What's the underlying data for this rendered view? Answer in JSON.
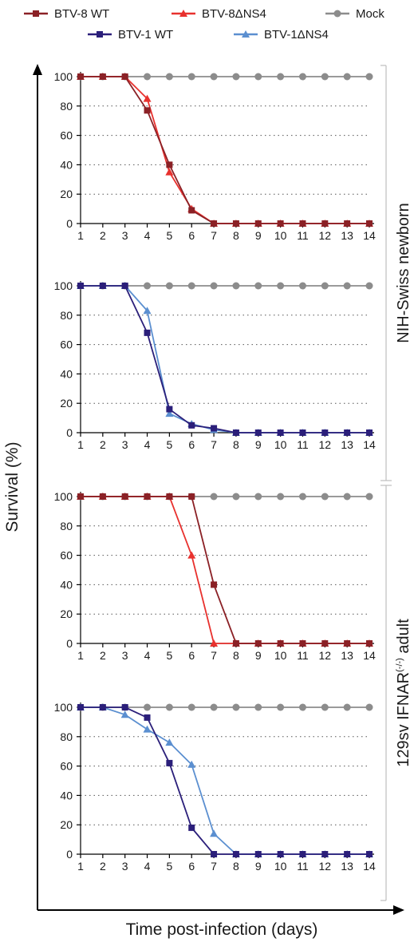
{
  "chart_data": {
    "type": "line",
    "xlabel": "Time post-infection (days)",
    "ylabel": "Survival (%)",
    "x": [
      1,
      2,
      3,
      4,
      5,
      6,
      7,
      8,
      9,
      10,
      11,
      12,
      13,
      14
    ],
    "ylim": [
      0,
      100
    ],
    "yticks": [
      0,
      20,
      40,
      60,
      80,
      100
    ],
    "grid": "dotted horizontal",
    "legend_placement": "top",
    "legend": [
      {
        "name": "BTV-8 WT",
        "color": "#8b2126",
        "marker": "square"
      },
      {
        "name": "BTV-8ΔNS4",
        "color": "#e8312e",
        "marker": "triangle"
      },
      {
        "name": "Mock",
        "color": "#8c8c8c",
        "marker": "circle"
      },
      {
        "name": "BTV-1 WT",
        "color": "#2b1f7a",
        "marker": "square"
      },
      {
        "name": "BTV-1ΔNS4",
        "color": "#5b8fd0",
        "marker": "triangle"
      }
    ],
    "group_labels": [
      {
        "text": "NIH-Swiss newborn",
        "superscript": ""
      },
      {
        "text": "129sv IFNAR",
        "superscript": "(-/-)",
        "suffix": " adult"
      }
    ],
    "panels": [
      {
        "series": [
          {
            "name": "Mock",
            "color": "#8c8c8c",
            "marker": "circle",
            "values": [
              100,
              100,
              100,
              100,
              100,
              100,
              100,
              100,
              100,
              100,
              100,
              100,
              100,
              100
            ]
          },
          {
            "name": "BTV-8ΔNS4",
            "color": "#e8312e",
            "marker": "triangle",
            "values": [
              100,
              100,
              100,
              85,
              35,
              10,
              0,
              0,
              0,
              0,
              0,
              0,
              0,
              0
            ]
          },
          {
            "name": "BTV-8 WT",
            "color": "#8b2126",
            "marker": "square",
            "values": [
              100,
              100,
              100,
              77,
              40,
              9,
              0,
              0,
              0,
              0,
              0,
              0,
              0,
              0
            ]
          }
        ]
      },
      {
        "series": [
          {
            "name": "Mock",
            "color": "#8c8c8c",
            "marker": "circle",
            "values": [
              100,
              100,
              100,
              100,
              100,
              100,
              100,
              100,
              100,
              100,
              100,
              100,
              100,
              100
            ]
          },
          {
            "name": "BTV-1ΔNS4",
            "color": "#5b8fd0",
            "marker": "triangle",
            "values": [
              100,
              100,
              100,
              83,
              13,
              6,
              2,
              0,
              0,
              0,
              0,
              0,
              0,
              0
            ]
          },
          {
            "name": "BTV-1 WT",
            "color": "#2b1f7a",
            "marker": "square",
            "values": [
              100,
              100,
              100,
              68,
              16,
              5,
              3,
              0,
              0,
              0,
              0,
              0,
              0,
              0
            ]
          }
        ]
      },
      {
        "series": [
          {
            "name": "Mock",
            "color": "#8c8c8c",
            "marker": "circle",
            "values": [
              100,
              100,
              100,
              100,
              100,
              100,
              100,
              100,
              100,
              100,
              100,
              100,
              100,
              100
            ]
          },
          {
            "name": "BTV-8ΔNS4",
            "color": "#e8312e",
            "marker": "triangle",
            "values": [
              100,
              100,
              100,
              100,
              100,
              60,
              0,
              0,
              0,
              0,
              0,
              0,
              0,
              0
            ]
          },
          {
            "name": "BTV-8 WT",
            "color": "#8b2126",
            "marker": "square",
            "values": [
              100,
              100,
              100,
              100,
              100,
              100,
              40,
              0,
              0,
              0,
              0,
              0,
              0,
              0
            ]
          }
        ]
      },
      {
        "series": [
          {
            "name": "Mock",
            "color": "#8c8c8c",
            "marker": "circle",
            "values": [
              100,
              100,
              100,
              100,
              100,
              100,
              100,
              100,
              100,
              100,
              100,
              100,
              100,
              100
            ]
          },
          {
            "name": "BTV-1ΔNS4",
            "color": "#5b8fd0",
            "marker": "triangle",
            "values": [
              100,
              100,
              95,
              85,
              76,
              61,
              14,
              0,
              0,
              0,
              0,
              0,
              0,
              0
            ]
          },
          {
            "name": "BTV-1 WT",
            "color": "#2b1f7a",
            "marker": "square",
            "values": [
              100,
              100,
              100,
              93,
              62,
              18,
              0,
              0,
              0,
              0,
              0,
              0,
              0,
              0
            ]
          }
        ]
      }
    ]
  }
}
